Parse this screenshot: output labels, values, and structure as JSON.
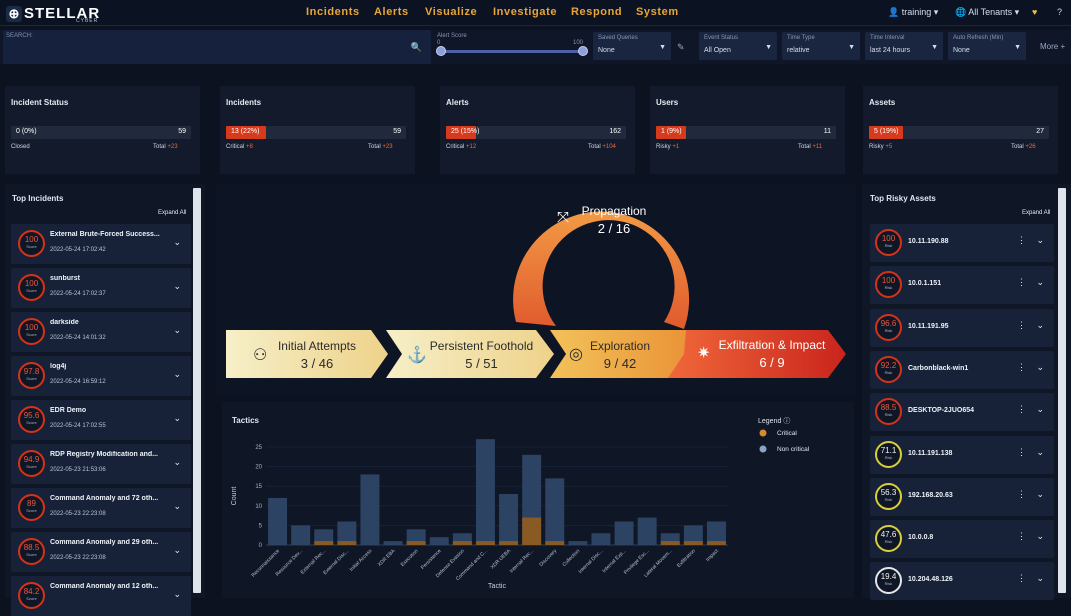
{
  "app": {
    "brand": "STELLAR",
    "brand_sub": "CYBER"
  },
  "nav": {
    "items": [
      "Incidents",
      "Alerts",
      "Visualize",
      "Investigate",
      "Respond",
      "System"
    ],
    "user": "training",
    "tenant": "All Tenants"
  },
  "filters": {
    "search_label": "SEARCH:",
    "alert_score_label": "Alert Score",
    "alert_score_min": "0",
    "alert_score_max": "100",
    "saved_queries": {
      "label": "Saved Queries",
      "value": "None"
    },
    "event_status": {
      "label": "Event Status",
      "value": "All Open"
    },
    "time_type": {
      "label": "Time Type",
      "value": "relative"
    },
    "time_interval": {
      "label": "Time Interval",
      "value": "last 24 hours"
    },
    "auto_refresh": {
      "label": "Auto Refresh (Min)",
      "value": "None"
    },
    "more": "More"
  },
  "stats": [
    {
      "title": "Incident Status",
      "bar_left": "0 (0%)",
      "bar_right": "59",
      "fill": 0.0,
      "left_label": "Closed",
      "left_delta": "",
      "total_label": "Total",
      "total_delta": "+23"
    },
    {
      "title": "Incidents",
      "bar_left": "13 (22%)",
      "bar_right": "59",
      "fill": 0.22,
      "left_label": "Critical",
      "left_delta": "+8",
      "total_label": "Total",
      "total_delta": "+23"
    },
    {
      "title": "Alerts",
      "bar_left": "25 (15%)",
      "bar_right": "162",
      "fill": 0.15,
      "left_label": "Critical",
      "left_delta": "+12",
      "total_label": "Total",
      "total_delta": "+104"
    },
    {
      "title": "Users",
      "bar_left": "1 (9%)",
      "bar_right": "11",
      "fill": 0.09,
      "left_label": "Risky",
      "left_delta": "+1",
      "total_label": "Total",
      "total_delta": "+11"
    },
    {
      "title": "Assets",
      "bar_left": "5 (19%)",
      "bar_right": "27",
      "fill": 0.19,
      "left_label": "Risky",
      "left_delta": "+5",
      "total_label": "Total",
      "total_delta": "+26"
    }
  ],
  "top_incidents": {
    "title": "Top Incidents",
    "expand": "Expand All",
    "score_label": "Score",
    "items": [
      {
        "score": "100",
        "name": "External Brute-Forced Success...",
        "time": "2022-05-24 17:02:42"
      },
      {
        "score": "100",
        "name": "sunburst",
        "time": "2022-05-24 17:02:37"
      },
      {
        "score": "100",
        "name": "darkside",
        "time": "2022-05-24 14:01:32"
      },
      {
        "score": "97.8",
        "name": "log4j",
        "time": "2022-05-24 16:59:12"
      },
      {
        "score": "95.6",
        "name": "EDR Demo",
        "time": "2022-05-24 17:02:55"
      },
      {
        "score": "94.9",
        "name": "RDP Registry Modification and...",
        "time": "2022-05-23 21:53:06"
      },
      {
        "score": "89",
        "name": "Command Anomaly and 72 oth...",
        "time": "2022-05-23 22:23:08"
      },
      {
        "score": "88.5",
        "name": "Command Anomaly and 29 oth...",
        "time": "2022-05-23 22:23:08"
      },
      {
        "score": "84.2",
        "name": "Command Anomaly and 12 oth...",
        "time": ""
      }
    ]
  },
  "killchain": {
    "stages": [
      {
        "name": "Initial Attempts",
        "count": "3 / 46"
      },
      {
        "name": "Persistent Foothold",
        "count": "5 / 51"
      },
      {
        "name": "Exploration",
        "count": "9 / 42"
      },
      {
        "name": "Exfiltration & Impact",
        "count": "6 / 9"
      },
      {
        "name": "Propagation",
        "count": "2 / 16"
      }
    ]
  },
  "tactics_panel": {
    "title": "Tactics",
    "legend_title": "Legend"
  },
  "chart_data": {
    "type": "bar",
    "stacked": true,
    "xlabel": "Tactic",
    "ylabel": "Count",
    "ylim": [
      0,
      25
    ],
    "yticks": [
      0,
      5,
      10,
      15,
      20,
      25
    ],
    "categories": [
      "Reconnaissance",
      "Resource Dev...",
      "External Rec...",
      "External Disc...",
      "Initial Access",
      "XDR EBA",
      "Execution",
      "Persistence",
      "Defense Evasion",
      "Command and C...",
      "XDR UEBA",
      "Internal Rec...",
      "Discovery",
      "Collection",
      "Internal Disc...",
      "Internal Exp...",
      "Privilege Esc...",
      "Lateral Movem...",
      "Exfiltration",
      "Impact"
    ],
    "series": [
      {
        "name": "Critical",
        "color": "#d88a2e",
        "values": [
          0,
          0,
          1,
          1,
          0,
          0,
          1,
          0,
          1,
          1,
          1,
          7,
          1,
          0,
          0,
          0,
          0,
          1,
          1,
          1
        ]
      },
      {
        "name": "Non critical",
        "color": "#8aa3c7",
        "values": [
          12,
          5,
          3,
          5,
          18,
          1,
          3,
          2,
          2,
          26,
          12,
          16,
          16,
          1,
          3,
          6,
          7,
          2,
          4,
          5
        ]
      }
    ],
    "legend_position": "top-right"
  },
  "risky_assets": {
    "title": "Top Risky Assets",
    "expand": "Expand All",
    "risk_label": "Risk",
    "items": [
      {
        "score": "100",
        "name": "10.11.190.88",
        "level": "high"
      },
      {
        "score": "100",
        "name": "10.0.1.151",
        "level": "high"
      },
      {
        "score": "96.6",
        "name": "10.11.191.95",
        "level": "high"
      },
      {
        "score": "92.2",
        "name": "Carbonblack-win1",
        "level": "high"
      },
      {
        "score": "88.5",
        "name": "DESKTOP-2JUO654",
        "level": "high"
      },
      {
        "score": "71.1",
        "name": "10.11.191.138",
        "level": "medium"
      },
      {
        "score": "56.3",
        "name": "192.168.20.63",
        "level": "medium"
      },
      {
        "score": "47.6",
        "name": "10.0.0.8",
        "level": "medium"
      },
      {
        "score": "19.4",
        "name": "10.204.48.126",
        "level": "low"
      }
    ]
  },
  "colors": {
    "accent": "#e8a53a",
    "critical": "#d3331a",
    "medium": "#d9cf3a",
    "low": "#e4e6ea"
  }
}
